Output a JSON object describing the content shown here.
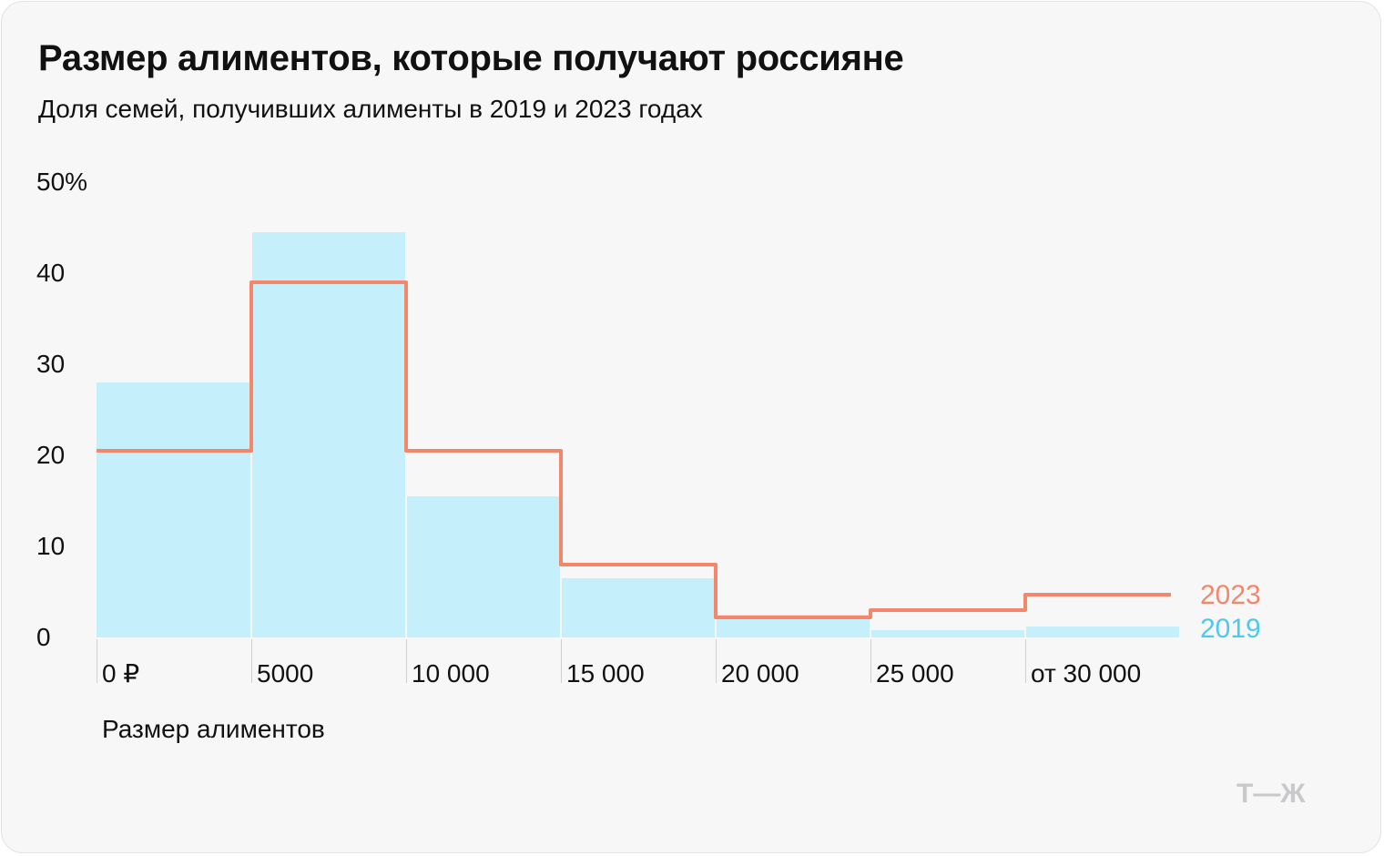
{
  "title": "Размер алиментов, которые получают россияне",
  "subtitle": "Доля семей, получивших алименты в 2019 и 2023 годах",
  "logo_text": "Т—Ж",
  "colors": {
    "series_2019": "#c6effc",
    "series_2019_label": "#4cc9ec",
    "series_2023": "#f4876a",
    "background": "#f7f7f8"
  },
  "chart_data": {
    "type": "bar",
    "title": "Размер алиментов, которые получают россияне",
    "subtitle": "Доля семей, получивших алименты в 2019 и 2023 годах",
    "xlabel": "Размер алиментов",
    "ylabel": "",
    "categories": [
      "0 ₽",
      "5000",
      "10 000",
      "15 000",
      "20 000",
      "25 000",
      "от 30 000"
    ],
    "yticks": [
      "0",
      "10",
      "20",
      "30",
      "40",
      "50%"
    ],
    "ylim": [
      0,
      50
    ],
    "series": [
      {
        "name": "2019",
        "style": "bars",
        "values": [
          28,
          44.5,
          15.5,
          6.5,
          2.5,
          0.8,
          1.2
        ]
      },
      {
        "name": "2023",
        "style": "step-line",
        "values": [
          20.5,
          39,
          20.5,
          8,
          2.2,
          3,
          4.7
        ]
      }
    ]
  }
}
